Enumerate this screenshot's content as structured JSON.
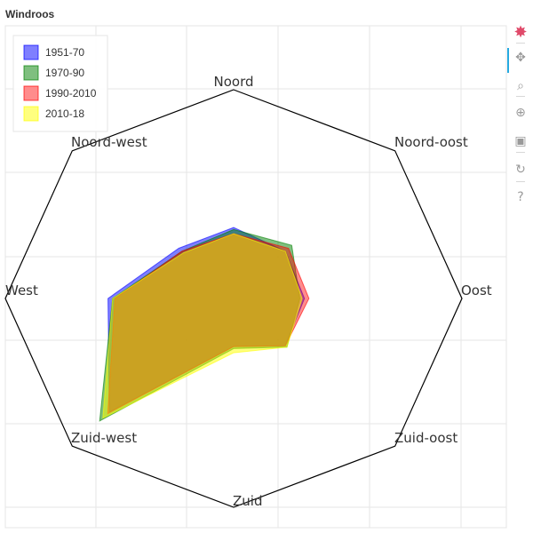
{
  "title": "Windroos",
  "chart_data": {
    "type": "radar",
    "directions": [
      "Noord",
      "Noord-oost",
      "Oost",
      "Zuid-oost",
      "Zuid",
      "Zuid-west",
      "West",
      "Noord-west"
    ],
    "rmax": 1.0,
    "series": [
      {
        "name": "1951-70",
        "color": "#0000ff",
        "values": [
          0.34,
          0.32,
          0.31,
          0.32,
          0.23,
          0.77,
          0.55,
          0.34
        ]
      },
      {
        "name": "1970-90",
        "color": "#008000",
        "values": [
          0.33,
          0.36,
          0.29,
          0.33,
          0.24,
          0.83,
          0.53,
          0.32
        ]
      },
      {
        "name": "1990-2010",
        "color": "#ff0000",
        "values": [
          0.31,
          0.34,
          0.33,
          0.32,
          0.23,
          0.78,
          0.52,
          0.32
        ]
      },
      {
        "name": "2010-18",
        "color": "#ffff00",
        "values": [
          0.31,
          0.32,
          0.3,
          0.33,
          0.26,
          0.81,
          0.53,
          0.31
        ]
      }
    ],
    "legend_position": "top-left",
    "grid": true
  },
  "toolbar": {
    "tools": [
      {
        "name": "bokeh-logo-icon",
        "glyph": "✸"
      },
      {
        "name": "pan-tool-icon",
        "glyph": "✥"
      },
      {
        "name": "box-zoom-tool-icon",
        "glyph": "⌕"
      },
      {
        "name": "wheel-zoom-tool-icon",
        "glyph": "⊕"
      },
      {
        "name": "save-tool-icon",
        "glyph": "▣"
      },
      {
        "name": "reset-tool-icon",
        "glyph": "↻"
      },
      {
        "name": "help-tool-icon",
        "glyph": "?"
      }
    ]
  }
}
